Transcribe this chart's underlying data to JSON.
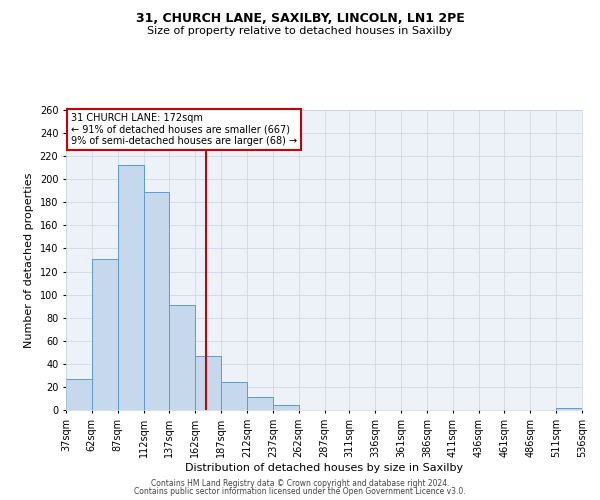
{
  "title1": "31, CHURCH LANE, SAXILBY, LINCOLN, LN1 2PE",
  "title2": "Size of property relative to detached houses in Saxilby",
  "xlabel": "Distribution of detached houses by size in Saxilby",
  "ylabel": "Number of detached properties",
  "bar_color": "#c6d9ec",
  "bar_edge_color": "#5b9bd5",
  "background_color": "#ffffff",
  "grid_color": "#c8d4e0",
  "bin_edges": [
    37,
    62,
    87,
    112,
    137,
    162,
    187,
    212,
    237,
    262,
    287,
    311,
    336,
    361,
    386,
    411,
    436,
    461,
    486,
    511,
    536
  ],
  "bar_heights": [
    27,
    131,
    212,
    189,
    91,
    47,
    24,
    11,
    4,
    0,
    0,
    0,
    0,
    0,
    0,
    0,
    0,
    0,
    0,
    2
  ],
  "property_size": 172,
  "vline_color": "#cc0000",
  "annotation_line1": "31 CHURCH LANE: 172sqm",
  "annotation_line2": "← 91% of detached houses are smaller (667)",
  "annotation_line3": "9% of semi-detached houses are larger (68) →",
  "annotation_box_color": "#ffffff",
  "annotation_box_edge_color": "#cc0000",
  "ylim": [
    0,
    260
  ],
  "yticks": [
    0,
    20,
    40,
    60,
    80,
    100,
    120,
    140,
    160,
    180,
    200,
    220,
    240,
    260
  ],
  "footer1": "Contains HM Land Registry data © Crown copyright and database right 2024.",
  "footer2": "Contains public sector information licensed under the Open Government Licence v3.0.",
  "title1_fontsize": 9,
  "title2_fontsize": 8,
  "axis_label_fontsize": 8,
  "tick_fontsize": 7,
  "footer_fontsize": 5.5
}
